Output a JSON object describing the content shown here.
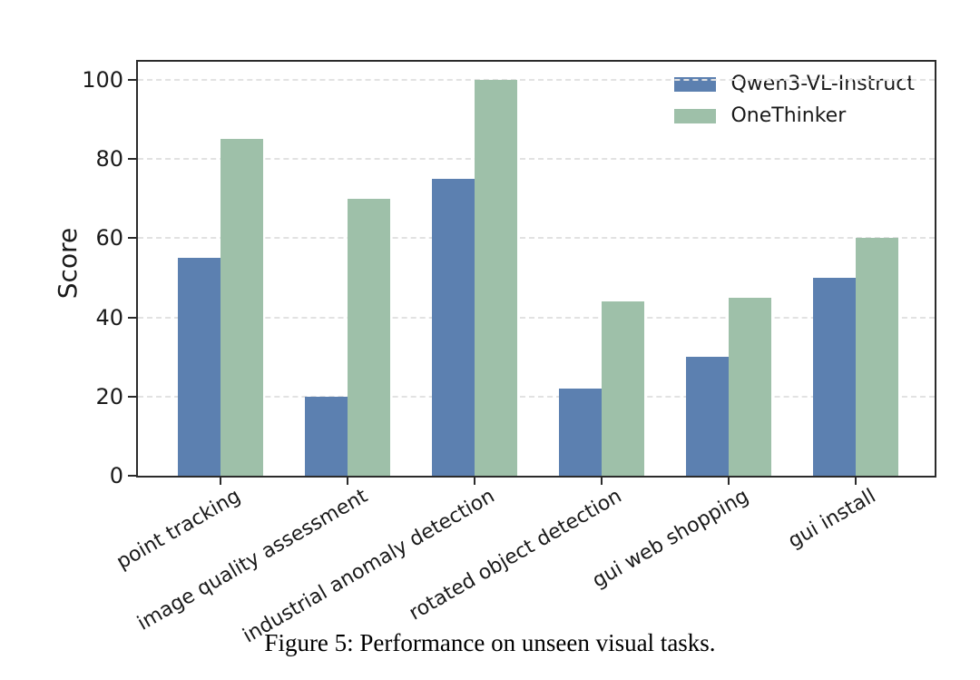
{
  "caption": "Figure 5: Performance on unseen visual tasks.",
  "chart_data": {
    "type": "bar",
    "title": "",
    "xlabel": "",
    "ylabel": "Score",
    "categories": [
      "point tracking",
      "image quality assessment",
      "industrial anomaly detection",
      "rotated object detection",
      "gui web shopping",
      "gui install"
    ],
    "series": [
      {
        "name": "Qwen3-VL-Instruct",
        "color": "#5C80B0",
        "values": [
          55,
          20,
          75,
          22,
          30,
          50
        ]
      },
      {
        "name": "OneThinker",
        "color": "#9EC0A9",
        "values": [
          85,
          70,
          100,
          44,
          45,
          60
        ]
      }
    ],
    "yticks": [
      0,
      20,
      40,
      60,
      80,
      100
    ],
    "ylim": [
      0,
      104.6
    ],
    "grid": "horizontal-dashed",
    "grid_color": "#e2e2e2",
    "axis_color": "#2b2b2b",
    "legend_position": "upper right",
    "legend_frame": false
  }
}
